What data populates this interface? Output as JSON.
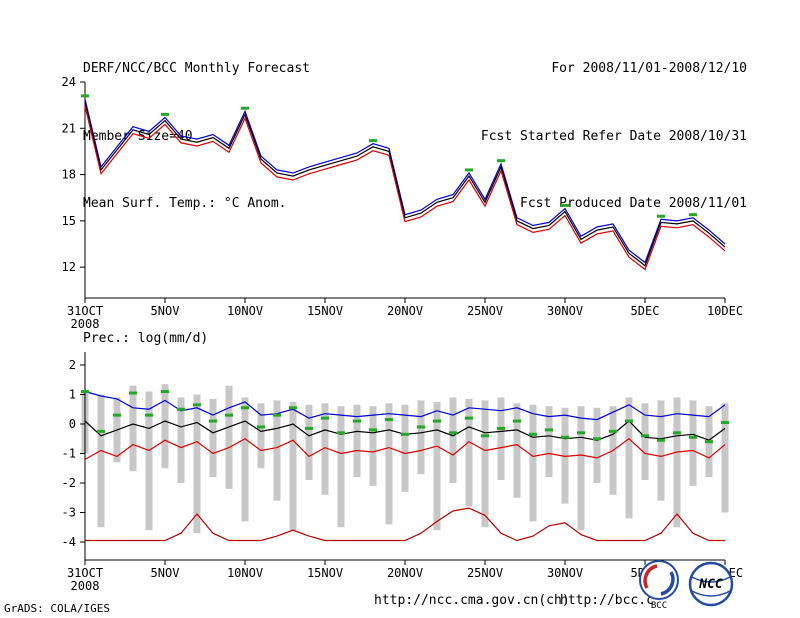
{
  "header": {
    "title": "DERF/NCC/BCC Monthly Forecast",
    "member_size": "Member Size=40",
    "for_range": "For 2008/11/01-2008/12/10",
    "refer_date": "Fcst Started Refer Date 2008/10/31",
    "produced_date": "Fcst Produced Date 2008/11/01"
  },
  "footer": {
    "grads_credit": "GrADS: COLA/IGES",
    "url_ncc": "http://ncc.cma.gov.cn(ch)",
    "url_bcc": "http://bcc.c",
    "logo_bcc": "BCC",
    "logo_ncc": "NCC"
  },
  "chart_data": [
    {
      "type": "line",
      "title": "Mean Surf. Temp.: °C Anom.",
      "x_tick_positions": [
        0,
        5,
        10,
        15,
        20,
        25,
        30,
        35,
        40
      ],
      "x_tick_labels": [
        "31OCT",
        "5NOV",
        "10NOV",
        "15NOV",
        "20NOV",
        "25NOV",
        "30NOV",
        "5DEC",
        "10DEC"
      ],
      "x_first_tick_sublabel": "2008",
      "ylim": [
        12,
        24
      ],
      "yticks": [
        12,
        15,
        18,
        21,
        24
      ],
      "grid": false,
      "legend": "none",
      "series": [
        {
          "name": "ensemble-max",
          "color": "#0000dd",
          "values": [
            22.9,
            18.5,
            19.8,
            21.1,
            20.8,
            21.7,
            20.5,
            20.3,
            20.6,
            19.9,
            22.1,
            19.2,
            18.3,
            18.1,
            18.5,
            18.8,
            19.1,
            19.4,
            20.0,
            19.7,
            15.4,
            15.7,
            16.4,
            16.7,
            18.1,
            16.4,
            18.7,
            15.2,
            14.7,
            14.9,
            15.8,
            14.0,
            14.6,
            14.8,
            13.1,
            12.3,
            15.1,
            15.0,
            15.2,
            14.4,
            13.5
          ]
        },
        {
          "name": "ensemble-mean",
          "color": "#000000",
          "values": [
            22.7,
            18.3,
            19.6,
            20.9,
            20.6,
            21.5,
            20.3,
            20.1,
            20.4,
            19.7,
            21.9,
            19.0,
            18.1,
            17.9,
            18.3,
            18.6,
            18.9,
            19.2,
            19.8,
            19.5,
            15.2,
            15.5,
            16.2,
            16.5,
            17.9,
            16.2,
            18.5,
            15.0,
            14.5,
            14.7,
            15.6,
            13.8,
            14.4,
            14.6,
            12.9,
            12.1,
            14.9,
            14.8,
            15.0,
            14.2,
            13.3
          ]
        },
        {
          "name": "ensemble-min",
          "color": "#dd0000",
          "values": [
            22.45,
            18.05,
            19.35,
            20.65,
            20.35,
            21.25,
            20.05,
            19.85,
            20.15,
            19.45,
            21.65,
            18.75,
            17.85,
            17.65,
            18.05,
            18.35,
            18.65,
            18.95,
            19.55,
            19.25,
            14.95,
            15.25,
            15.95,
            16.25,
            17.65,
            15.95,
            18.25,
            14.75,
            14.25,
            14.45,
            15.35,
            13.55,
            14.15,
            14.35,
            12.65,
            11.85,
            14.65,
            14.55,
            14.75,
            13.95,
            13.05
          ]
        }
      ],
      "green_marks": {
        "name": "peak-marks",
        "color": "#22aa22",
        "points": [
          [
            0,
            23.1
          ],
          [
            5,
            21.9
          ],
          [
            10,
            22.3
          ],
          [
            18,
            20.2
          ],
          [
            24,
            18.3
          ],
          [
            26,
            18.9
          ],
          [
            30,
            16.0
          ],
          [
            36,
            15.3
          ],
          [
            38,
            15.4
          ]
        ]
      }
    },
    {
      "type": "line",
      "title": "Prec.: log(mm/d)",
      "x_tick_positions": [
        0,
        5,
        10,
        15,
        20,
        25,
        30,
        35,
        40
      ],
      "x_tick_labels": [
        "31OCT",
        "5NOV",
        "10NOV",
        "15NOV",
        "20NOV",
        "25NOV",
        "30NOV",
        "5DEC",
        "10DEC"
      ],
      "x_first_tick_sublabel": "2008",
      "ylim": [
        -4,
        2
      ],
      "yticks": [
        -4,
        -3,
        -2,
        -1,
        0,
        1,
        2
      ],
      "grid": false,
      "legend": "none",
      "bars": {
        "name": "ensemble-range",
        "color": "#c8c8c8",
        "ranges": [
          [
            -1.0,
            1.15
          ],
          [
            -3.5,
            1.0
          ],
          [
            -1.3,
            0.9
          ],
          [
            -1.6,
            1.3
          ],
          [
            -3.6,
            1.1
          ],
          [
            -1.5,
            1.35
          ],
          [
            -2.0,
            0.9
          ],
          [
            -3.7,
            1.0
          ],
          [
            -1.8,
            0.85
          ],
          [
            -2.2,
            1.3
          ],
          [
            -3.3,
            0.9
          ],
          [
            -1.5,
            0.7
          ],
          [
            -2.6,
            0.8
          ],
          [
            -3.6,
            0.75
          ],
          [
            -1.9,
            0.65
          ],
          [
            -2.4,
            0.7
          ],
          [
            -3.5,
            0.6
          ],
          [
            -1.8,
            0.65
          ],
          [
            -2.1,
            0.6
          ],
          [
            -3.4,
            0.7
          ],
          [
            -2.3,
            0.65
          ],
          [
            -1.7,
            0.8
          ],
          [
            -3.6,
            0.75
          ],
          [
            -2.0,
            0.9
          ],
          [
            -2.8,
            0.85
          ],
          [
            -3.5,
            0.8
          ],
          [
            -1.9,
            0.9
          ],
          [
            -2.5,
            0.7
          ],
          [
            -3.3,
            0.65
          ],
          [
            -1.8,
            0.6
          ],
          [
            -2.7,
            0.55
          ],
          [
            -3.6,
            0.6
          ],
          [
            -2.0,
            0.55
          ],
          [
            -2.4,
            0.6
          ],
          [
            -3.2,
            0.9
          ],
          [
            -1.9,
            0.7
          ],
          [
            -2.6,
            0.8
          ],
          [
            -3.5,
            0.9
          ],
          [
            -2.1,
            0.8
          ],
          [
            -1.8,
            0.6
          ],
          [
            -3.0,
            0.7
          ]
        ]
      },
      "series": [
        {
          "name": "prec-upper",
          "color": "#0000dd",
          "values": [
            1.1,
            0.95,
            0.85,
            0.55,
            0.5,
            0.8,
            0.45,
            0.55,
            0.3,
            0.55,
            0.75,
            0.3,
            0.35,
            0.5,
            0.2,
            0.35,
            0.3,
            0.25,
            0.3,
            0.35,
            0.3,
            0.25,
            0.45,
            0.3,
            0.55,
            0.5,
            0.45,
            0.55,
            0.35,
            0.25,
            0.3,
            0.2,
            0.15,
            0.4,
            0.65,
            0.3,
            0.25,
            0.35,
            0.3,
            0.25,
            0.65
          ]
        },
        {
          "name": "prec-mean",
          "color": "#000000",
          "values": [
            0.1,
            -0.4,
            -0.2,
            0.0,
            -0.15,
            0.1,
            -0.1,
            0.05,
            -0.3,
            -0.1,
            0.1,
            -0.25,
            -0.15,
            0.0,
            -0.4,
            -0.2,
            -0.35,
            -0.25,
            -0.3,
            -0.2,
            -0.35,
            -0.3,
            -0.2,
            -0.4,
            -0.1,
            -0.3,
            -0.25,
            -0.2,
            -0.45,
            -0.4,
            -0.5,
            -0.45,
            -0.55,
            -0.35,
            0.1,
            -0.45,
            -0.5,
            -0.4,
            -0.35,
            -0.55,
            -0.15
          ]
        },
        {
          "name": "prec-lower",
          "color": "#dd0000",
          "values": [
            -1.2,
            -0.9,
            -1.1,
            -0.7,
            -0.9,
            -0.55,
            -0.8,
            -0.6,
            -1.0,
            -0.8,
            -0.5,
            -0.9,
            -0.8,
            -0.55,
            -1.1,
            -0.8,
            -1.0,
            -0.9,
            -0.95,
            -0.8,
            -1.0,
            -0.9,
            -0.75,
            -1.05,
            -0.6,
            -0.9,
            -0.8,
            -0.7,
            -1.1,
            -1.0,
            -1.1,
            -1.05,
            -1.15,
            -0.9,
            -0.5,
            -1.0,
            -1.1,
            -0.95,
            -0.9,
            -1.15,
            -0.7
          ]
        },
        {
          "name": "prec-minimum",
          "color": "#bb0000",
          "values": [
            -3.95,
            -3.95,
            -3.95,
            -3.95,
            -3.95,
            -3.95,
            -3.7,
            -3.05,
            -3.7,
            -3.95,
            -3.95,
            -3.95,
            -3.8,
            -3.6,
            -3.8,
            -3.95,
            -3.95,
            -3.95,
            -3.95,
            -3.95,
            -3.95,
            -3.7,
            -3.3,
            -2.95,
            -2.85,
            -3.1,
            -3.7,
            -3.95,
            -3.8,
            -3.45,
            -3.35,
            -3.75,
            -3.95,
            -3.95,
            -3.95,
            -3.95,
            -3.7,
            -3.05,
            -3.7,
            -3.95,
            -3.95
          ]
        }
      ],
      "green_marks": {
        "name": "clim-marks",
        "color": "#22aa22",
        "values": [
          1.1,
          -0.25,
          0.3,
          1.05,
          0.3,
          1.1,
          0.5,
          0.65,
          0.1,
          0.3,
          0.55,
          -0.1,
          0.3,
          0.55,
          -0.15,
          0.2,
          -0.3,
          0.1,
          -0.2,
          0.15,
          -0.35,
          -0.1,
          0.1,
          -0.3,
          0.2,
          -0.4,
          -0.15,
          0.1,
          -0.35,
          -0.2,
          -0.45,
          -0.3,
          -0.5,
          -0.25,
          0.1,
          -0.4,
          -0.55,
          -0.3,
          -0.45,
          -0.6,
          0.05
        ]
      }
    }
  ]
}
